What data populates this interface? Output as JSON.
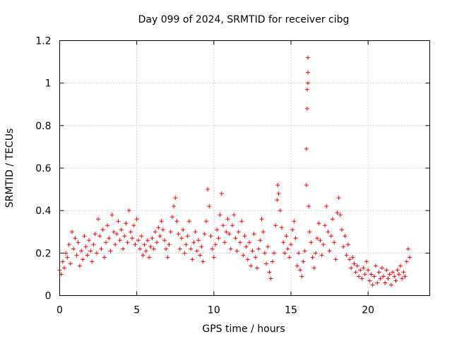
{
  "chart_data": {
    "type": "scatter",
    "title": "Day 099 of 2024, SRMTID for receiver cibg",
    "xlabel": "GPS time / hours",
    "ylabel": "SRMTID / TECUs",
    "xlim": [
      0,
      24
    ],
    "ylim": [
      0,
      1.2
    ],
    "xticks": [
      0,
      5,
      10,
      15,
      20
    ],
    "xtick_labels": [
      "0",
      "5",
      "10",
      "15",
      "20"
    ],
    "yticks": [
      0,
      0.2,
      0.4,
      0.6,
      0.8,
      1.0,
      1.2
    ],
    "ytick_labels": [
      "0",
      "0.2",
      "0.4",
      "0.6",
      "0.8",
      "1",
      "1.2"
    ],
    "grid": true,
    "marker": "+",
    "color": "#ff0000",
    "series": [
      {
        "name": "SRMTID",
        "points": [
          [
            0.0,
            0.12
          ],
          [
            0.1,
            0.1
          ],
          [
            0.2,
            0.16
          ],
          [
            0.3,
            0.13
          ],
          [
            0.4,
            0.2
          ],
          [
            0.5,
            0.18
          ],
          [
            0.6,
            0.24
          ],
          [
            0.7,
            0.15
          ],
          [
            0.8,
            0.3
          ],
          [
            0.9,
            0.22
          ],
          [
            1.0,
            0.27
          ],
          [
            1.1,
            0.19
          ],
          [
            1.2,
            0.25
          ],
          [
            1.3,
            0.14
          ],
          [
            1.4,
            0.21
          ],
          [
            1.5,
            0.17
          ],
          [
            1.6,
            0.28
          ],
          [
            1.7,
            0.23
          ],
          [
            1.8,
            0.19
          ],
          [
            1.9,
            0.26
          ],
          [
            2.0,
            0.21
          ],
          [
            2.1,
            0.16
          ],
          [
            2.2,
            0.24
          ],
          [
            2.3,
            0.29
          ],
          [
            2.4,
            0.2
          ],
          [
            2.5,
            0.36
          ],
          [
            2.6,
            0.28
          ],
          [
            2.7,
            0.22
          ],
          [
            2.8,
            0.31
          ],
          [
            2.9,
            0.18
          ],
          [
            3.0,
            0.25
          ],
          [
            3.1,
            0.33
          ],
          [
            3.2,
            0.27
          ],
          [
            3.3,
            0.21
          ],
          [
            3.4,
            0.38
          ],
          [
            3.5,
            0.3
          ],
          [
            3.6,
            0.24
          ],
          [
            3.7,
            0.29
          ],
          [
            3.8,
            0.35
          ],
          [
            3.9,
            0.26
          ],
          [
            4.0,
            0.31
          ],
          [
            4.1,
            0.22
          ],
          [
            4.2,
            0.28
          ],
          [
            4.3,
            0.34
          ],
          [
            4.4,
            0.25
          ],
          [
            4.5,
            0.4
          ],
          [
            4.6,
            0.3
          ],
          [
            4.7,
            0.27
          ],
          [
            4.8,
            0.33
          ],
          [
            4.9,
            0.24
          ],
          [
            5.0,
            0.36
          ],
          [
            5.1,
            0.26
          ],
          [
            5.2,
            0.22
          ],
          [
            5.3,
            0.28
          ],
          [
            5.4,
            0.19
          ],
          [
            5.5,
            0.24
          ],
          [
            5.6,
            0.21
          ],
          [
            5.7,
            0.26
          ],
          [
            5.8,
            0.18
          ],
          [
            5.9,
            0.23
          ],
          [
            6.0,
            0.27
          ],
          [
            6.1,
            0.22
          ],
          [
            6.2,
            0.3
          ],
          [
            6.3,
            0.25
          ],
          [
            6.4,
            0.32
          ],
          [
            6.5,
            0.28
          ],
          [
            6.6,
            0.35
          ],
          [
            6.7,
            0.31
          ],
          [
            6.8,
            0.26
          ],
          [
            6.9,
            0.22
          ],
          [
            7.0,
            0.18
          ],
          [
            7.1,
            0.24
          ],
          [
            7.2,
            0.3
          ],
          [
            7.3,
            0.37
          ],
          [
            7.4,
            0.42
          ],
          [
            7.5,
            0.46
          ],
          [
            7.6,
            0.35
          ],
          [
            7.7,
            0.29
          ],
          [
            7.8,
            0.22
          ],
          [
            7.9,
            0.27
          ],
          [
            8.0,
            0.31
          ],
          [
            8.1,
            0.2
          ],
          [
            8.2,
            0.24
          ],
          [
            8.3,
            0.28
          ],
          [
            8.4,
            0.35
          ],
          [
            8.5,
            0.22
          ],
          [
            8.6,
            0.17
          ],
          [
            8.7,
            0.25
          ],
          [
            8.8,
            0.3
          ],
          [
            8.9,
            0.21
          ],
          [
            9.0,
            0.26
          ],
          [
            9.1,
            0.19
          ],
          [
            9.2,
            0.23
          ],
          [
            9.3,
            0.16
          ],
          [
            9.4,
            0.29
          ],
          [
            9.5,
            0.35
          ],
          [
            9.6,
            0.5
          ],
          [
            9.7,
            0.42
          ],
          [
            9.8,
            0.28
          ],
          [
            9.9,
            0.22
          ],
          [
            10.0,
            0.18
          ],
          [
            10.1,
            0.24
          ],
          [
            10.2,
            0.31
          ],
          [
            10.3,
            0.27
          ],
          [
            10.4,
            0.38
          ],
          [
            10.5,
            0.48
          ],
          [
            10.6,
            0.33
          ],
          [
            10.7,
            0.25
          ],
          [
            10.8,
            0.3
          ],
          [
            10.9,
            0.36
          ],
          [
            11.0,
            0.29
          ],
          [
            11.1,
            0.22
          ],
          [
            11.2,
            0.33
          ],
          [
            11.3,
            0.38
          ],
          [
            11.4,
            0.27
          ],
          [
            11.5,
            0.21
          ],
          [
            11.6,
            0.3
          ],
          [
            11.7,
            0.25
          ],
          [
            11.8,
            0.35
          ],
          [
            11.9,
            0.19
          ],
          [
            12.0,
            0.28
          ],
          [
            12.1,
            0.23
          ],
          [
            12.2,
            0.17
          ],
          [
            12.3,
            0.25
          ],
          [
            12.4,
            0.14
          ],
          [
            12.5,
            0.21
          ],
          [
            12.6,
            0.29
          ],
          [
            12.7,
            0.18
          ],
          [
            12.8,
            0.13
          ],
          [
            12.9,
            0.22
          ],
          [
            13.0,
            0.26
          ],
          [
            13.1,
            0.36
          ],
          [
            13.2,
            0.3
          ],
          [
            13.3,
            0.2
          ],
          [
            13.4,
            0.15
          ],
          [
            13.5,
            0.23
          ],
          [
            13.6,
            0.11
          ],
          [
            13.7,
            0.08
          ],
          [
            13.8,
            0.16
          ],
          [
            13.9,
            0.2
          ],
          [
            14.0,
            0.33
          ],
          [
            14.1,
            0.45
          ],
          [
            14.15,
            0.52
          ],
          [
            14.2,
            0.48
          ],
          [
            14.3,
            0.4
          ],
          [
            14.4,
            0.32
          ],
          [
            14.5,
            0.25
          ],
          [
            14.6,
            0.2
          ],
          [
            14.7,
            0.28
          ],
          [
            14.8,
            0.22
          ],
          [
            14.9,
            0.18
          ],
          [
            15.0,
            0.24
          ],
          [
            15.1,
            0.31
          ],
          [
            15.2,
            0.35
          ],
          [
            15.3,
            0.27
          ],
          [
            15.4,
            0.14
          ],
          [
            15.5,
            0.2
          ],
          [
            15.6,
            0.12
          ],
          [
            15.7,
            0.09
          ],
          [
            15.8,
            0.16
          ],
          [
            15.9,
            0.21
          ],
          [
            16.0,
            0.52
          ],
          [
            16.0,
            0.69
          ],
          [
            16.05,
            0.88
          ],
          [
            16.05,
            0.97
          ],
          [
            16.1,
            1.0
          ],
          [
            16.1,
            1.05
          ],
          [
            16.1,
            1.12
          ],
          [
            16.15,
            0.42
          ],
          [
            16.2,
            0.3
          ],
          [
            16.3,
            0.25
          ],
          [
            16.4,
            0.18
          ],
          [
            16.5,
            0.13
          ],
          [
            16.6,
            0.2
          ],
          [
            16.7,
            0.27
          ],
          [
            16.8,
            0.34
          ],
          [
            16.9,
            0.26
          ],
          [
            17.0,
            0.19
          ],
          [
            17.1,
            0.24
          ],
          [
            17.2,
            0.33
          ],
          [
            17.3,
            0.42
          ],
          [
            17.4,
            0.3
          ],
          [
            17.5,
            0.21
          ],
          [
            17.6,
            0.28
          ],
          [
            17.7,
            0.36
          ],
          [
            17.8,
            0.25
          ],
          [
            17.9,
            0.17
          ],
          [
            18.0,
            0.39
          ],
          [
            18.1,
            0.46
          ],
          [
            18.2,
            0.38
          ],
          [
            18.3,
            0.31
          ],
          [
            18.4,
            0.23
          ],
          [
            18.5,
            0.28
          ],
          [
            18.6,
            0.19
          ],
          [
            18.7,
            0.24
          ],
          [
            18.8,
            0.17
          ],
          [
            18.9,
            0.13
          ],
          [
            19.0,
            0.18
          ],
          [
            19.1,
            0.15
          ],
          [
            19.2,
            0.11
          ],
          [
            19.3,
            0.14
          ],
          [
            19.4,
            0.09
          ],
          [
            19.5,
            0.12
          ],
          [
            19.6,
            0.08
          ],
          [
            19.7,
            0.13
          ],
          [
            19.8,
            0.1
          ],
          [
            19.9,
            0.16
          ],
          [
            20.0,
            0.12
          ],
          [
            20.1,
            0.07
          ],
          [
            20.2,
            0.1
          ],
          [
            20.3,
            0.05
          ],
          [
            20.4,
            0.09
          ],
          [
            20.5,
            0.14
          ],
          [
            20.6,
            0.06
          ],
          [
            20.7,
            0.11
          ],
          [
            20.8,
            0.08
          ],
          [
            20.9,
            0.13
          ],
          [
            21.0,
            0.09
          ],
          [
            21.1,
            0.06
          ],
          [
            21.2,
            0.12
          ],
          [
            21.3,
            0.08
          ],
          [
            21.4,
            0.1
          ],
          [
            21.5,
            0.05
          ],
          [
            21.6,
            0.11
          ],
          [
            21.7,
            0.09
          ],
          [
            21.8,
            0.07
          ],
          [
            21.9,
            0.12
          ],
          [
            22.0,
            0.1
          ],
          [
            22.1,
            0.14
          ],
          [
            22.2,
            0.08
          ],
          [
            22.3,
            0.11
          ],
          [
            22.4,
            0.09
          ],
          [
            22.5,
            0.16
          ],
          [
            22.6,
            0.22
          ],
          [
            22.7,
            0.18
          ]
        ]
      }
    ]
  }
}
